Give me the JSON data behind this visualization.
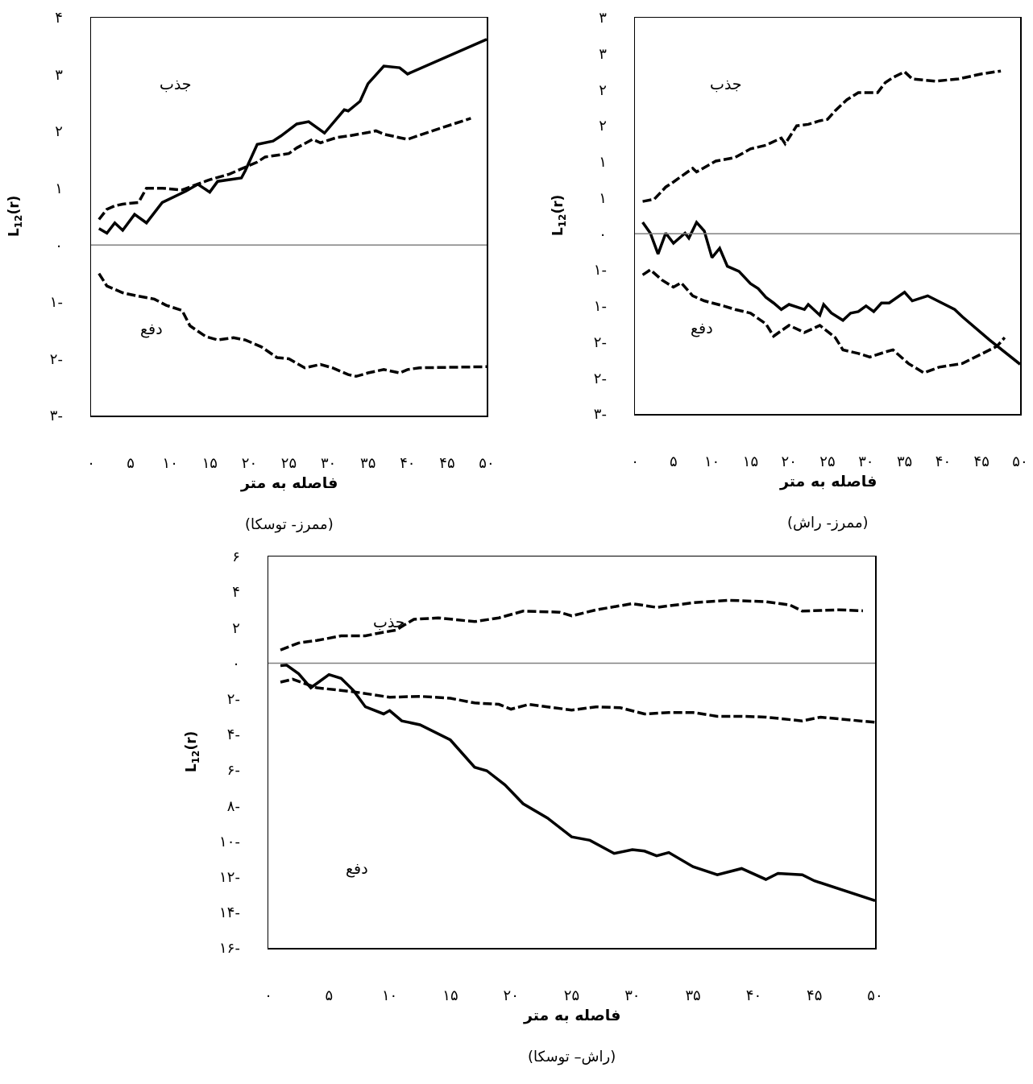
{
  "chart_data": [
    {
      "type": "line",
      "title": "(ممرز- توسکا)",
      "xlabel": "فاصله به متر",
      "ylabel": "L$_{12}$(r)",
      "xlim": [
        0,
        50
      ],
      "ylim": [
        -3,
        4
      ],
      "xticks": [
        {
          "value": 0,
          "label": "۰"
        },
        {
          "value": 5,
          "label": "۵"
        },
        {
          "value": 10,
          "label": "۱۰"
        },
        {
          "value": 15,
          "label": "۱۵"
        },
        {
          "value": 20,
          "label": "۲۰"
        },
        {
          "value": 25,
          "label": "۲۵"
        },
        {
          "value": 30,
          "label": "۳۰"
        },
        {
          "value": 35,
          "label": "۳۵"
        },
        {
          "value": 40,
          "label": "۴۰"
        },
        {
          "value": 45,
          "label": "۴۵"
        },
        {
          "value": 50,
          "label": "۵۰"
        }
      ],
      "yticks": [
        {
          "value": 4,
          "label": "۴"
        },
        {
          "value": 3,
          "label": "۳"
        },
        {
          "value": 2,
          "label": "۲"
        },
        {
          "value": 1,
          "label": "۱"
        },
        {
          "value": 0,
          "label": "۰"
        },
        {
          "value": -1,
          "label": "۱-"
        },
        {
          "value": -2,
          "label": "۲-"
        },
        {
          "value": -3,
          "label": "۳-"
        }
      ],
      "ref_lines": [
        {
          "axis": "y",
          "value": 0,
          "color": "#808080"
        }
      ],
      "annotations": [
        "جذب",
        "دفع"
      ],
      "series": [
        {
          "color": "#000000",
          "line_style": "solid",
          "x": [
            1,
            2,
            3,
            4,
            5.5,
            7,
            9,
            12,
            13.5,
            15,
            16,
            19,
            19.5,
            21,
            23,
            24,
            26,
            27.5,
            29.5,
            32,
            32.5,
            34,
            35,
            37,
            39,
            40,
            50
          ],
          "values": [
            0.29,
            0.21,
            0.39,
            0.26,
            0.54,
            0.39,
            0.75,
            0.95,
            1.07,
            0.93,
            1.12,
            1.18,
            1.31,
            1.77,
            1.83,
            1.92,
            2.13,
            2.17,
            1.97,
            2.38,
            2.36,
            2.53,
            2.84,
            3.15,
            3.12,
            3.01,
            3.62
          ]
        },
        {
          "color": "#000000",
          "line_style": "dashed",
          "x": [
            1,
            2,
            3,
            4,
            6,
            7,
            9,
            11.5,
            15,
            17.5,
            19,
            21,
            22,
            25,
            26,
            28,
            29,
            31,
            32.5,
            35,
            36,
            37,
            40,
            42.5,
            48
          ],
          "values": [
            0.45,
            0.63,
            0.69,
            0.72,
            0.75,
            1.0,
            1.0,
            0.97,
            1.15,
            1.25,
            1.34,
            1.46,
            1.55,
            1.61,
            1.71,
            1.86,
            1.8,
            1.89,
            1.92,
            1.98,
            2.01,
            1.95,
            1.86,
            1.98,
            2.23
          ]
        },
        {
          "color": "#000000",
          "line_style": "dashed",
          "x": [
            1,
            2,
            4,
            6,
            8,
            9.5,
            11.5,
            12.5,
            14.5,
            16,
            18,
            19.5,
            21.5,
            23.5,
            25,
            27,
            29,
            30.5,
            32.5,
            33.5,
            35,
            37,
            39,
            40,
            41.5,
            50
          ],
          "values": [
            -0.5,
            -0.72,
            -0.84,
            -0.9,
            -0.95,
            -1.06,
            -1.15,
            -1.42,
            -1.61,
            -1.67,
            -1.63,
            -1.67,
            -1.79,
            -1.98,
            -2.0,
            -2.16,
            -2.1,
            -2.16,
            -2.28,
            -2.31,
            -2.25,
            -2.19,
            -2.25,
            -2.19,
            -2.16,
            -2.14
          ]
        }
      ]
    },
    {
      "type": "line",
      "title": "(ممرز- راش)",
      "xlabel": "فاصله به متر",
      "ylabel": "L$_{12}$(r)",
      "xlim": [
        0,
        50
      ],
      "ylim": [
        -2.5,
        3
      ],
      "xticks": [
        {
          "value": 0,
          "label": "۰"
        },
        {
          "value": 5,
          "label": "۵"
        },
        {
          "value": 10,
          "label": "۱۰"
        },
        {
          "value": 15,
          "label": "۱۵"
        },
        {
          "value": 20,
          "label": "۲۰"
        },
        {
          "value": 25,
          "label": "۲۵"
        },
        {
          "value": 30,
          "label": "۳۰"
        },
        {
          "value": 35,
          "label": "۳۵"
        },
        {
          "value": 40,
          "label": "۴۰"
        },
        {
          "value": 45,
          "label": "۴۵"
        },
        {
          "value": 50,
          "label": "۵۰"
        }
      ],
      "yticks": [
        {
          "value": 3,
          "label": "۳"
        },
        {
          "value": 2.5,
          "label": "۳"
        },
        {
          "value": 2,
          "label": "۲"
        },
        {
          "value": 1.5,
          "label": "۲"
        },
        {
          "value": 1,
          "label": "۱"
        },
        {
          "value": 0.5,
          "label": "۱"
        },
        {
          "value": 0,
          "label": "۰"
        },
        {
          "value": -0.5,
          "label": "۱-"
        },
        {
          "value": -1,
          "label": "۱-"
        },
        {
          "value": -1.5,
          "label": "۲-"
        },
        {
          "value": -2,
          "label": "۲-"
        },
        {
          "value": -2.5,
          "label": "۳-"
        }
      ],
      "ref_lines": [
        {
          "axis": "y",
          "value": 0,
          "color": "#808080"
        }
      ],
      "annotations": [
        "جذب",
        "دفع"
      ],
      "series": [
        {
          "color": "#000000",
          "line_style": "dashed",
          "x": [
            1,
            2.5,
            4,
            5,
            7.5,
            8,
            10.5,
            13,
            15,
            17,
            19,
            19.5,
            21,
            22.5,
            24,
            25,
            26,
            27.5,
            29,
            31.5,
            32.5,
            33.5,
            35,
            36,
            39,
            42,
            45,
            47.5
          ],
          "values": [
            0.45,
            0.48,
            0.65,
            0.72,
            0.91,
            0.86,
            1.01,
            1.06,
            1.18,
            1.23,
            1.33,
            1.25,
            1.5,
            1.52,
            1.57,
            1.59,
            1.71,
            1.86,
            1.96,
            1.96,
            2.1,
            2.17,
            2.25,
            2.15,
            2.12,
            2.15,
            2.22,
            2.26
          ]
        },
        {
          "color": "#000000",
          "line_style": "solid",
          "x": [
            1,
            2,
            3,
            4,
            5,
            6.5,
            7,
            8,
            9,
            10,
            11,
            12,
            13.5,
            15,
            16,
            17,
            18,
            19,
            20,
            22,
            22.5,
            24,
            24.5,
            25.5,
            27,
            28,
            29,
            30,
            31,
            32,
            33,
            35,
            36,
            38,
            41.5,
            42.5,
            46,
            50
          ],
          "values": [
            0.16,
            0.01,
            -0.28,
            0.01,
            -0.13,
            0.01,
            -0.06,
            0.16,
            0.04,
            -0.33,
            -0.2,
            -0.45,
            -0.52,
            -0.69,
            -0.76,
            -0.88,
            -0.96,
            -1.05,
            -0.98,
            -1.05,
            -0.98,
            -1.13,
            -0.98,
            -1.1,
            -1.2,
            -1.1,
            -1.08,
            -1.0,
            -1.08,
            -0.96,
            -0.96,
            -0.81,
            -0.93,
            -0.86,
            -1.05,
            -1.15,
            -1.47,
            -1.81
          ]
        },
        {
          "color": "#000000",
          "line_style": "dashed",
          "x": [
            1,
            2,
            3.5,
            5,
            6,
            7.5,
            9,
            11.5,
            13,
            15,
            17,
            18,
            20,
            22,
            24,
            26,
            27,
            29,
            30.5,
            32.5,
            33.5,
            35.5,
            37.5,
            39.5,
            42.5,
            47,
            48
          ],
          "values": [
            -0.57,
            -0.5,
            -0.64,
            -0.74,
            -0.68,
            -0.86,
            -0.93,
            -1.0,
            -1.05,
            -1.1,
            -1.25,
            -1.42,
            -1.27,
            -1.37,
            -1.27,
            -1.44,
            -1.61,
            -1.66,
            -1.71,
            -1.64,
            -1.61,
            -1.8,
            -1.93,
            -1.85,
            -1.8,
            -1.56,
            -1.44
          ]
        }
      ]
    },
    {
      "type": "line",
      "title": "(راش– توسکا)",
      "xlabel": "فاصله به متر",
      "ylabel": "L$_{12}$(r)",
      "xlim": [
        0,
        50
      ],
      "ylim": [
        -16,
        6
      ],
      "xticks": [
        {
          "value": 0,
          "label": "۰"
        },
        {
          "value": 5,
          "label": "۵"
        },
        {
          "value": 10,
          "label": "۱۰"
        },
        {
          "value": 15,
          "label": "۱۵"
        },
        {
          "value": 20,
          "label": "۲۰"
        },
        {
          "value": 25,
          "label": "۲۵"
        },
        {
          "value": 30,
          "label": "۳۰"
        },
        {
          "value": 35,
          "label": "۳۵"
        },
        {
          "value": 40,
          "label": "۴۰"
        },
        {
          "value": 45,
          "label": "۴۵"
        },
        {
          "value": 50,
          "label": "۵۰"
        }
      ],
      "yticks": [
        {
          "value": 6,
          "label": "۶"
        },
        {
          "value": 4,
          "label": "۴"
        },
        {
          "value": 2,
          "label": "۲"
        },
        {
          "value": 0,
          "label": "۰"
        },
        {
          "value": -2,
          "label": "۲-"
        },
        {
          "value": -4,
          "label": "۴-"
        },
        {
          "value": -6,
          "label": "۶-"
        },
        {
          "value": -8,
          "label": "۸-"
        },
        {
          "value": -10,
          "label": "۱۰-"
        },
        {
          "value": -12,
          "label": "۱۲-"
        },
        {
          "value": -14,
          "label": "۱۴-"
        },
        {
          "value": -16,
          "label": "۱۶-"
        }
      ],
      "ref_lines": [
        {
          "axis": "y",
          "value": 0,
          "color": "#808080"
        }
      ],
      "annotations": [
        "جذب",
        "دفع"
      ],
      "series": [
        {
          "color": "#000000",
          "line_style": "dashed",
          "x": [
            1,
            2.5,
            4,
            6,
            8,
            9,
            10.5,
            12,
            14,
            17,
            19,
            21,
            24,
            25,
            27,
            30,
            32,
            35,
            38,
            41,
            43,
            44,
            47,
            49
          ],
          "values": [
            0.74,
            1.14,
            1.28,
            1.54,
            1.54,
            1.68,
            1.86,
            2.47,
            2.55,
            2.34,
            2.55,
            2.93,
            2.87,
            2.66,
            3.0,
            3.35,
            3.14,
            3.4,
            3.54,
            3.46,
            3.27,
            2.93,
            3.0,
            2.95
          ]
        },
        {
          "color": "#000000",
          "line_style": "dashed",
          "x": [
            1,
            2,
            4,
            7,
            10,
            12.5,
            15,
            17,
            19,
            20,
            21.5,
            23,
            25,
            27,
            29,
            31,
            33,
            35,
            37,
            39,
            41,
            44,
            45.5,
            50
          ],
          "values": [
            -1.06,
            -0.9,
            -1.38,
            -1.6,
            -1.91,
            -1.86,
            -1.97,
            -2.23,
            -2.31,
            -2.58,
            -2.31,
            -2.45,
            -2.63,
            -2.45,
            -2.5,
            -2.85,
            -2.77,
            -2.77,
            -2.98,
            -2.98,
            -3.03,
            -3.24,
            -3.03,
            -3.32
          ]
        },
        {
          "color": "#000000",
          "line_style": "solid",
          "x": [
            1,
            1.5,
            2.5,
            3.5,
            5,
            6,
            7,
            8,
            9.5,
            10,
            11,
            12.5,
            15,
            17,
            18,
            19.5,
            21,
            23,
            25,
            26.5,
            28.5,
            30,
            31,
            32,
            33,
            35,
            37,
            39,
            41,
            42,
            44,
            45,
            50
          ],
          "values": [
            -0.13,
            -0.1,
            -0.59,
            -1.38,
            -0.64,
            -0.85,
            -1.52,
            -2.45,
            -2.85,
            -2.66,
            -3.24,
            -3.46,
            -4.31,
            -5.85,
            -6.04,
            -6.84,
            -7.9,
            -8.7,
            -9.76,
            -9.95,
            -10.69,
            -10.48,
            -10.56,
            -10.82,
            -10.64,
            -11.44,
            -11.89,
            -11.54,
            -12.15,
            -11.81,
            -11.89,
            -12.23,
            -13.35
          ]
        }
      ]
    }
  ]
}
